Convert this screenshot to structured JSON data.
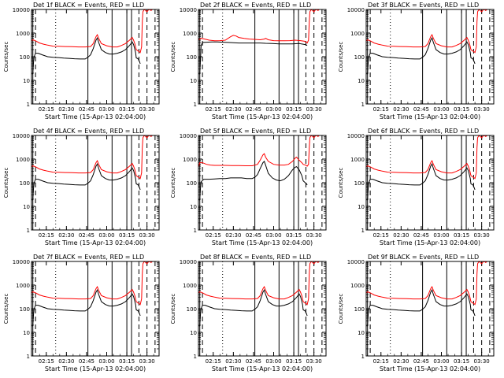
{
  "chart_data": [
    {
      "type": "line",
      "title": "Det 1f BLACK = Events, RED = LLD",
      "xlabel": "Start Time (15-Apr-13 02:04:00)",
      "ylabel": "Counts/sec",
      "ylim": [
        1,
        10000
      ],
      "y_scale": "log",
      "x_range_minutes": [
        0,
        95
      ],
      "xticks": [
        "02:15",
        "02:30",
        "02:45",
        "03:00",
        "03:15",
        "03:30"
      ],
      "yticks": [
        "1",
        "10",
        "100",
        "1000",
        "10000"
      ],
      "events_profile": "A",
      "lld_profile": "A"
    },
    {
      "type": "line",
      "title": "Det 2f BLACK = Events, RED = LLD",
      "xlabel": "Start Time (15-Apr-13 02:04:00)",
      "ylabel": "Counts/sec",
      "ylim": [
        1,
        10000
      ],
      "y_scale": "log",
      "x_range_minutes": [
        0,
        95
      ],
      "xticks": [
        "02:15",
        "02:30",
        "02:45",
        "03:00",
        "03:15",
        "03:30"
      ],
      "yticks": [
        "1",
        "10",
        "100",
        "1000",
        "10000"
      ],
      "events_profile": "det2",
      "lld_profile": "det2"
    },
    {
      "type": "line",
      "title": "Det 3f BLACK = Events, RED = LLD",
      "xlabel": "Start Time (15-Apr-13 02:04:00)",
      "ylabel": "Counts/sec",
      "ylim": [
        1,
        10000
      ],
      "y_scale": "log",
      "x_range_minutes": [
        0,
        95
      ],
      "xticks": [
        "02:15",
        "02:30",
        "02:45",
        "03:00",
        "03:15",
        "03:30"
      ],
      "yticks": [
        "1",
        "10",
        "100",
        "1000",
        "10000"
      ],
      "events_profile": "A",
      "lld_profile": "A"
    },
    {
      "type": "line",
      "title": "Det 4f BLACK = Events, RED = LLD",
      "xlabel": "Start Time (15-Apr-13 02:04:00)",
      "ylabel": "Counts/sec",
      "ylim": [
        1,
        10000
      ],
      "y_scale": "log",
      "x_range_minutes": [
        0,
        95
      ],
      "xticks": [
        "02:15",
        "02:30",
        "02:45",
        "03:00",
        "03:15",
        "03:30"
      ],
      "yticks": [
        "1",
        "10",
        "100",
        "1000",
        "10000"
      ],
      "events_profile": "A",
      "lld_profile": "A"
    },
    {
      "type": "line",
      "title": "Det 5f BLACK = Events, RED = LLD",
      "xlabel": "Start Time (15-Apr-13 02:04:00)",
      "ylabel": "Counts/sec",
      "ylim": [
        1,
        10000
      ],
      "y_scale": "log",
      "x_range_minutes": [
        0,
        95
      ],
      "xticks": [
        "02:15",
        "02:30",
        "02:45",
        "03:00",
        "03:15",
        "03:30"
      ],
      "yticks": [
        "1",
        "10",
        "100",
        "1000",
        "10000"
      ],
      "events_profile": "det5",
      "lld_profile": "det5"
    },
    {
      "type": "line",
      "title": "Det 6f BLACK = Events, RED = LLD",
      "xlabel": "Start Time (15-Apr-13 02:04:00)",
      "ylabel": "Counts/sec",
      "ylim": [
        1,
        10000
      ],
      "y_scale": "log",
      "x_range_minutes": [
        0,
        95
      ],
      "xticks": [
        "02:15",
        "02:30",
        "02:45",
        "03:00",
        "03:15",
        "03:30"
      ],
      "yticks": [
        "1",
        "10",
        "100",
        "1000",
        "10000"
      ],
      "events_profile": "A",
      "lld_profile": "A"
    },
    {
      "type": "line",
      "title": "Det 7f BLACK = Events, RED = LLD",
      "xlabel": "Start Time (15-Apr-13 02:04:00)",
      "ylabel": "Counts/sec",
      "ylim": [
        1,
        10000
      ],
      "y_scale": "log",
      "x_range_minutes": [
        0,
        95
      ],
      "xticks": [
        "02:15",
        "02:30",
        "02:45",
        "03:00",
        "03:15",
        "03:30"
      ],
      "yticks": [
        "1",
        "10",
        "100",
        "1000",
        "10000"
      ],
      "events_profile": "A",
      "lld_profile": "A"
    },
    {
      "type": "line",
      "title": "Det 8f BLACK = Events, RED = LLD",
      "xlabel": "Start Time (15-Apr-13 02:04:00)",
      "ylabel": "Counts/sec",
      "ylim": [
        1,
        10000
      ],
      "y_scale": "log",
      "x_range_minutes": [
        0,
        95
      ],
      "xticks": [
        "02:15",
        "02:30",
        "02:45",
        "03:00",
        "03:15",
        "03:30"
      ],
      "yticks": [
        "1",
        "10",
        "100",
        "1000",
        "10000"
      ],
      "events_profile": "A",
      "lld_profile": "A"
    },
    {
      "type": "line",
      "title": "Det 9f BLACK = Events, RED = LLD",
      "xlabel": "Start Time (15-Apr-13 02:04:00)",
      "ylabel": "Counts/sec",
      "ylim": [
        1,
        10000
      ],
      "y_scale": "log",
      "x_range_minutes": [
        0,
        95
      ],
      "xticks": [
        "02:15",
        "02:30",
        "02:45",
        "03:00",
        "03:15",
        "03:30"
      ],
      "yticks": [
        "1",
        "10",
        "100",
        "1000",
        "10000"
      ],
      "events_profile": "A",
      "lld_profile": "A"
    }
  ],
  "profiles": {
    "A": {
      "events": [
        [
          0.5,
          18
        ],
        [
          1,
          20
        ],
        [
          1.5,
          60
        ],
        [
          2,
          100
        ],
        [
          3,
          140
        ],
        [
          5,
          140
        ],
        [
          8,
          120
        ],
        [
          12,
          100
        ],
        [
          16,
          95
        ],
        [
          20,
          92
        ],
        [
          24,
          88
        ],
        [
          28,
          85
        ],
        [
          32,
          82
        ],
        [
          36,
          80
        ],
        [
          40,
          80
        ],
        [
          42,
          95
        ],
        [
          44,
          120
        ],
        [
          46,
          220
        ],
        [
          48,
          500
        ],
        [
          49,
          620
        ],
        [
          50,
          400
        ],
        [
          52,
          200
        ],
        [
          55,
          150
        ],
        [
          58,
          130
        ],
        [
          61,
          130
        ],
        [
          64,
          140
        ],
        [
          67,
          160
        ],
        [
          70,
          200
        ],
        [
          73,
          300
        ],
        [
          75,
          420
        ],
        [
          76,
          330
        ],
        [
          77,
          200
        ],
        [
          77.5,
          150
        ],
        [
          78,
          90
        ],
        [
          79.5,
          80
        ],
        [
          80.5,
          60
        ],
        [
          81,
          50
        ]
      ],
      "lld": [
        [
          0,
          460
        ],
        [
          1,
          520
        ],
        [
          3,
          470
        ],
        [
          6,
          380
        ],
        [
          9,
          340
        ],
        [
          12,
          310
        ],
        [
          16,
          280
        ],
        [
          20,
          275
        ],
        [
          25,
          270
        ],
        [
          30,
          265
        ],
        [
          35,
          260
        ],
        [
          40,
          260
        ],
        [
          44,
          270
        ],
        [
          46,
          360
        ],
        [
          48,
          700
        ],
        [
          49,
          850
        ],
        [
          50,
          600
        ],
        [
          52,
          360
        ],
        [
          56,
          290
        ],
        [
          60,
          260
        ],
        [
          64,
          260
        ],
        [
          67,
          300
        ],
        [
          70,
          360
        ],
        [
          73,
          500
        ],
        [
          75,
          650
        ],
        [
          76,
          500
        ],
        [
          77,
          350
        ],
        [
          78,
          200
        ],
        [
          79,
          180
        ],
        [
          80.5,
          160
        ],
        [
          81,
          150
        ],
        [
          82,
          260
        ],
        [
          82.5,
          3000
        ],
        [
          83,
          8000
        ],
        [
          84,
          10000
        ],
        [
          86,
          8000
        ],
        [
          87,
          9500
        ],
        [
          88,
          10000
        ],
        [
          89,
          9000
        ],
        [
          90,
          10000
        ]
      ]
    },
    "det2": {
      "events": [
        [
          0.5,
          18
        ],
        [
          1,
          20
        ],
        [
          1.5,
          80
        ],
        [
          2,
          300
        ],
        [
          3,
          400
        ],
        [
          6,
          410
        ],
        [
          10,
          420
        ],
        [
          14,
          420
        ],
        [
          18,
          410
        ],
        [
          22,
          400
        ],
        [
          26,
          390
        ],
        [
          30,
          380
        ],
        [
          34,
          380
        ],
        [
          38,
          380
        ],
        [
          42,
          380
        ],
        [
          46,
          380
        ],
        [
          50,
          370
        ],
        [
          55,
          360
        ],
        [
          60,
          350
        ],
        [
          65,
          350
        ],
        [
          70,
          350
        ],
        [
          75,
          360
        ],
        [
          78,
          340
        ],
        [
          80,
          320
        ],
        [
          81,
          300
        ]
      ],
      "lld": [
        [
          0,
          520
        ],
        [
          2,
          600
        ],
        [
          5,
          550
        ],
        [
          8,
          500
        ],
        [
          12,
          470
        ],
        [
          16,
          480
        ],
        [
          20,
          500
        ],
        [
          24,
          700
        ],
        [
          26,
          800
        ],
        [
          28,
          750
        ],
        [
          30,
          650
        ],
        [
          34,
          600
        ],
        [
          38,
          560
        ],
        [
          42,
          540
        ],
        [
          46,
          520
        ],
        [
          49,
          560
        ],
        [
          50,
          600
        ],
        [
          52,
          520
        ],
        [
          56,
          480
        ],
        [
          60,
          470
        ],
        [
          64,
          470
        ],
        [
          68,
          480
        ],
        [
          72,
          500
        ],
        [
          76,
          480
        ],
        [
          79,
          450
        ],
        [
          80.5,
          400
        ],
        [
          81,
          380
        ],
        [
          82,
          500
        ],
        [
          82.5,
          3000
        ],
        [
          83,
          8000
        ],
        [
          84,
          10000
        ],
        [
          86,
          8000
        ],
        [
          87,
          9500
        ],
        [
          88,
          10000
        ],
        [
          89,
          9000
        ],
        [
          90,
          10000
        ]
      ]
    },
    "det5": {
      "events": [
        [
          0.5,
          18
        ],
        [
          1,
          20
        ],
        [
          1.5,
          60
        ],
        [
          2,
          110
        ],
        [
          4,
          140
        ],
        [
          8,
          140
        ],
        [
          12,
          145
        ],
        [
          16,
          150
        ],
        [
          20,
          150
        ],
        [
          24,
          160
        ],
        [
          28,
          160
        ],
        [
          32,
          160
        ],
        [
          36,
          150
        ],
        [
          40,
          150
        ],
        [
          42,
          170
        ],
        [
          44,
          220
        ],
        [
          46,
          400
        ],
        [
          48,
          700
        ],
        [
          49,
          800
        ],
        [
          50,
          550
        ],
        [
          52,
          250
        ],
        [
          55,
          160
        ],
        [
          58,
          130
        ],
        [
          61,
          120
        ],
        [
          64,
          140
        ],
        [
          67,
          200
        ],
        [
          70,
          350
        ],
        [
          72,
          450
        ],
        [
          73,
          480
        ],
        [
          75,
          350
        ],
        [
          77,
          200
        ],
        [
          78,
          120
        ],
        [
          79.5,
          100
        ],
        [
          80.5,
          90
        ],
        [
          81,
          80
        ]
      ],
      "lld": [
        [
          0,
          460
        ],
        [
          1,
          700
        ],
        [
          3,
          700
        ],
        [
          6,
          600
        ],
        [
          9,
          560
        ],
        [
          12,
          540
        ],
        [
          16,
          540
        ],
        [
          20,
          540
        ],
        [
          25,
          530
        ],
        [
          30,
          530
        ],
        [
          35,
          520
        ],
        [
          40,
          520
        ],
        [
          44,
          600
        ],
        [
          46,
          900
        ],
        [
          48,
          1500
        ],
        [
          49,
          1700
        ],
        [
          50,
          1200
        ],
        [
          52,
          800
        ],
        [
          56,
          600
        ],
        [
          60,
          560
        ],
        [
          64,
          560
        ],
        [
          67,
          600
        ],
        [
          70,
          800
        ],
        [
          72,
          1100
        ],
        [
          73,
          1200
        ],
        [
          75,
          900
        ],
        [
          77,
          700
        ],
        [
          78,
          600
        ],
        [
          80,
          550
        ],
        [
          81,
          500
        ],
        [
          82,
          600
        ],
        [
          82.5,
          3000
        ],
        [
          83,
          8000
        ],
        [
          84,
          10000
        ],
        [
          86,
          8000
        ],
        [
          87,
          9500
        ],
        [
          88,
          10000
        ],
        [
          89,
          9000
        ],
        [
          90,
          10000
        ]
      ]
    }
  },
  "vertical_markers": [
    {
      "minute": 1,
      "style": "solid"
    },
    {
      "minute": 3,
      "style": "dashed"
    },
    {
      "minute": 18,
      "style": "dotted"
    },
    {
      "minute": 42,
      "style": "solid"
    },
    {
      "minute": 60,
      "style": "solid"
    },
    {
      "minute": 71,
      "style": "solid"
    },
    {
      "minute": 74.5,
      "style": "solid"
    },
    {
      "minute": 80,
      "style": "dashed"
    },
    {
      "minute": 86,
      "style": "dashed"
    },
    {
      "minute": 92,
      "style": "dashed"
    }
  ],
  "colors": {
    "events": "#000000",
    "lld": "#ff0000",
    "axes": "#000000",
    "background": "#ffffff"
  }
}
